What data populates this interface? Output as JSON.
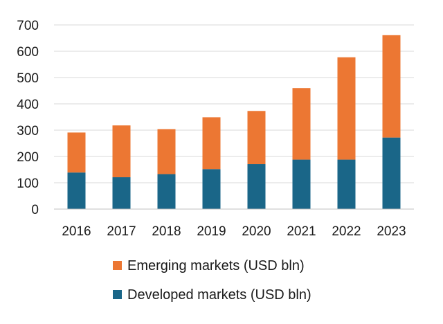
{
  "chart_data": {
    "type": "bar",
    "stacked": true,
    "categories": [
      "2016",
      "2017",
      "2018",
      "2019",
      "2020",
      "2021",
      "2022",
      "2023"
    ],
    "series": [
      {
        "name": "Developed markets (USD bln)",
        "values": [
          139,
          121,
          133,
          152,
          171,
          188,
          188,
          272
        ],
        "color": "#1a6688"
      },
      {
        "name": "Emerging markets (USD bln)",
        "values": [
          152,
          197,
          171,
          197,
          202,
          272,
          389,
          389
        ],
        "color": "#ec7733"
      }
    ],
    "ylim": [
      0,
      700
    ],
    "yticks": [
      0,
      100,
      200,
      300,
      400,
      500,
      600,
      700
    ],
    "grid": true,
    "legend": "bottom",
    "legend_order": [
      "Emerging markets (USD bln)",
      "Developed markets (USD bln)"
    ],
    "title": "",
    "xlabel": "",
    "ylabel": ""
  }
}
